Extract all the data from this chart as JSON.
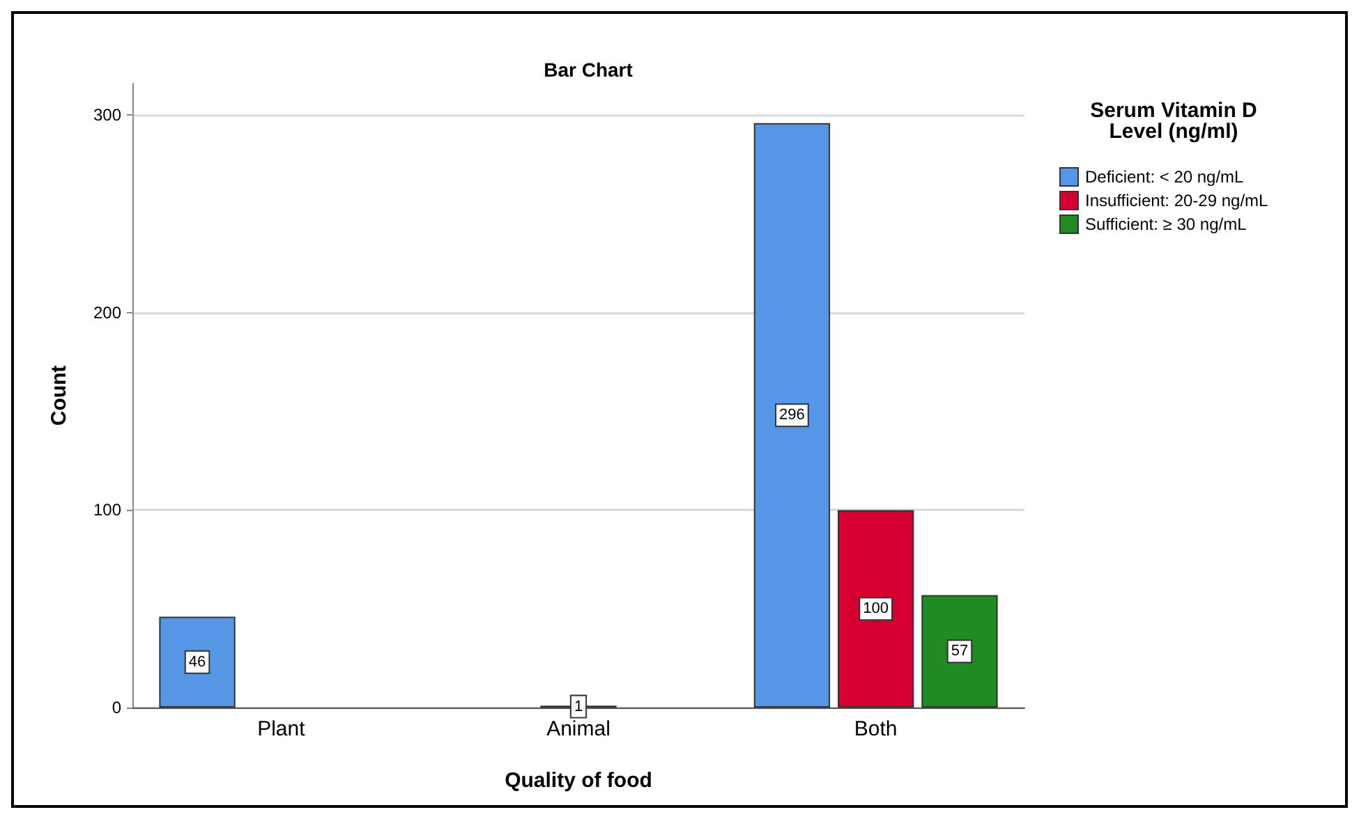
{
  "chart_data": {
    "type": "bar",
    "title": "Bar Chart",
    "xlabel": "Quality of food",
    "ylabel": "Count",
    "legend_title": "Serum Vitamin D\nLevel (ng/ml)",
    "categories": [
      "Plant",
      "Animal",
      "Both"
    ],
    "series": [
      {
        "name": "Deficient: < 20 ng/mL",
        "color": "#5596e6",
        "values": [
          46,
          null,
          296
        ]
      },
      {
        "name": "Insufficient: 20-29 ng/mL",
        "color": "#d5002f",
        "values": [
          null,
          1,
          100
        ]
      },
      {
        "name": "Sufficient: ≥ 30 ng/mL",
        "color": "#218a22",
        "values": [
          null,
          null,
          57
        ]
      }
    ],
    "ylim": [
      0,
      316
    ],
    "yticks": [
      0,
      100,
      200,
      300
    ],
    "grid": "y",
    "legend": "top right",
    "data_labels": true
  }
}
